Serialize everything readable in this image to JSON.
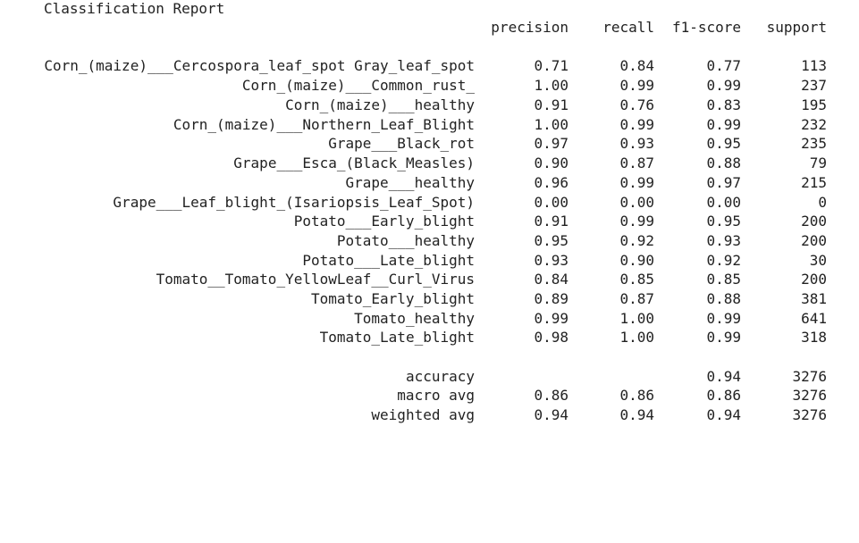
{
  "title": "Classification Report",
  "headers": {
    "precision": "precision",
    "recall": "recall",
    "f1": "f1-score",
    "support": "support"
  },
  "rows": [
    {
      "label": "Corn_(maize)___Cercospora_leaf_spot Gray_leaf_spot",
      "precision": "0.71",
      "recall": "0.84",
      "f1": "0.77",
      "support": "113"
    },
    {
      "label": "Corn_(maize)___Common_rust_",
      "precision": "1.00",
      "recall": "0.99",
      "f1": "0.99",
      "support": "237"
    },
    {
      "label": "Corn_(maize)___healthy",
      "precision": "0.91",
      "recall": "0.76",
      "f1": "0.83",
      "support": "195"
    },
    {
      "label": "Corn_(maize)___Northern_Leaf_Blight",
      "precision": "1.00",
      "recall": "0.99",
      "f1": "0.99",
      "support": "232"
    },
    {
      "label": "Grape___Black_rot",
      "precision": "0.97",
      "recall": "0.93",
      "f1": "0.95",
      "support": "235"
    },
    {
      "label": "Grape___Esca_(Black_Measles)",
      "precision": "0.90",
      "recall": "0.87",
      "f1": "0.88",
      "support": "79"
    },
    {
      "label": "Grape___healthy",
      "precision": "0.96",
      "recall": "0.99",
      "f1": "0.97",
      "support": "215"
    },
    {
      "label": "Grape___Leaf_blight_(Isariopsis_Leaf_Spot)",
      "precision": "0.00",
      "recall": "0.00",
      "f1": "0.00",
      "support": "0"
    },
    {
      "label": "Potato___Early_blight",
      "precision": "0.91",
      "recall": "0.99",
      "f1": "0.95",
      "support": "200"
    },
    {
      "label": "Potato___healthy",
      "precision": "0.95",
      "recall": "0.92",
      "f1": "0.93",
      "support": "200"
    },
    {
      "label": "Potato___Late_blight",
      "precision": "0.93",
      "recall": "0.90",
      "f1": "0.92",
      "support": "30"
    },
    {
      "label": "Tomato__Tomato_YellowLeaf__Curl_Virus",
      "precision": "0.84",
      "recall": "0.85",
      "f1": "0.85",
      "support": "200"
    },
    {
      "label": "Tomato_Early_blight",
      "precision": "0.89",
      "recall": "0.87",
      "f1": "0.88",
      "support": "381"
    },
    {
      "label": "Tomato_healthy",
      "precision": "0.99",
      "recall": "1.00",
      "f1": "0.99",
      "support": "641"
    },
    {
      "label": "Tomato_Late_blight",
      "precision": "0.98",
      "recall": "1.00",
      "f1": "0.99",
      "support": "318"
    }
  ],
  "summary": {
    "accuracy": {
      "label": "accuracy",
      "f1": "0.94",
      "support": "3276"
    },
    "macro": {
      "label": "macro avg",
      "precision": "0.86",
      "recall": "0.86",
      "f1": "0.86",
      "support": "3276"
    },
    "weighted": {
      "label": "weighted avg",
      "precision": "0.94",
      "recall": "0.94",
      "f1": "0.94",
      "support": "3276"
    }
  }
}
